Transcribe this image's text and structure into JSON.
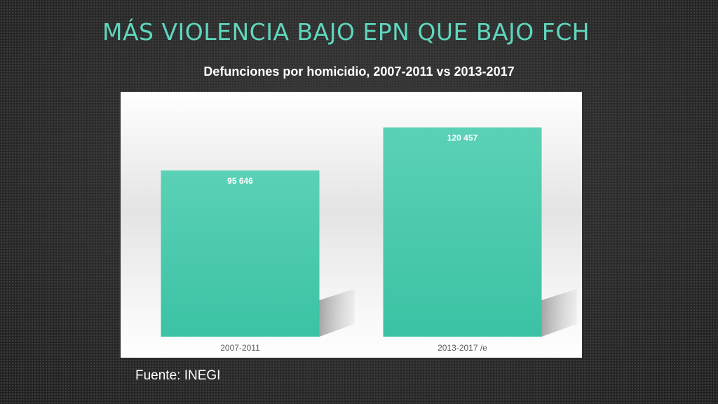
{
  "slide": {
    "title": "MÁS VIOLENCIA BAJO EPN QUE BAJO FCH",
    "source": "Fuente: INEGI"
  },
  "colors": {
    "bar_top": "#5bd1b6",
    "bar_bottom": "#3bc2a4",
    "title": "#5fd6bd"
  },
  "chart_data": {
    "type": "bar",
    "title": "Defunciones por homicidio, 2007-2011 vs 2013-2017",
    "categories": [
      "2007-2011",
      "2013-2017 /e"
    ],
    "values": [
      95646,
      120457
    ],
    "value_labels": [
      "95 646",
      "120 457"
    ],
    "ylim": [
      0,
      130000
    ],
    "grid": false,
    "legend": "none"
  }
}
